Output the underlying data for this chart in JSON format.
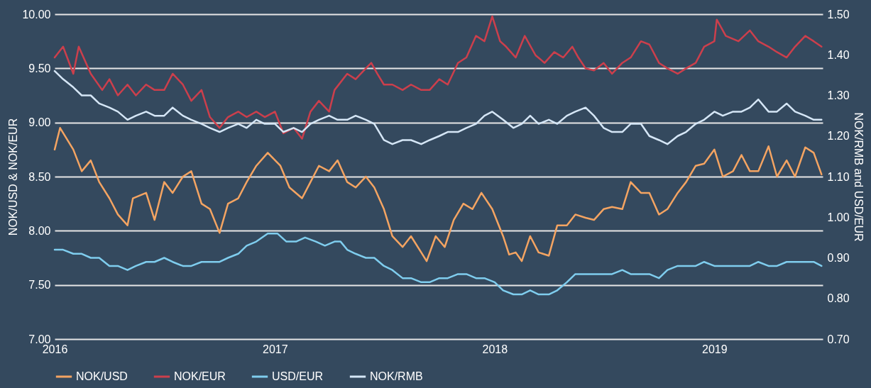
{
  "chart_data": {
    "type": "line",
    "ylabel": "NOK/USD & NOK/EUR",
    "y2label": "NOK/RMB and USD/EUR",
    "xlim": [
      "2016-01-01",
      "2019-06-30"
    ],
    "xticks": [
      "2016",
      "2017",
      "2018",
      "2019"
    ],
    "ylim": [
      7,
      10
    ],
    "yticks": [
      {
        "value": 7,
        "label": "7.00"
      },
      {
        "value": 7.5,
        "label": "7.50"
      },
      {
        "value": 8,
        "label": "8.00"
      },
      {
        "value": 8.5,
        "label": "8.50"
      },
      {
        "value": 9,
        "label": "9.00"
      },
      {
        "value": 9.5,
        "label": "9.50"
      },
      {
        "value": 10,
        "label": "10.00"
      }
    ],
    "y2lim": [
      0.7,
      1.5
    ],
    "y2ticks": [
      {
        "value": 0.7,
        "label": "0.70"
      },
      {
        "value": 0.8,
        "label": "0.80"
      },
      {
        "value": 0.9,
        "label": "0.90"
      },
      {
        "value": 1.0,
        "label": "1.00"
      },
      {
        "value": 1.1,
        "label": "1.10"
      },
      {
        "value": 1.2,
        "label": "1.20"
      },
      {
        "value": 1.3,
        "label": "1.30"
      },
      {
        "value": 1.4,
        "label": "1.40"
      },
      {
        "value": 1.5,
        "label": "1.50"
      }
    ],
    "grid": "y",
    "legend": "bottom",
    "marker": "none",
    "line_style": "solid",
    "series": [
      {
        "name": "NOK/USD",
        "color": "#f4a462",
        "x": [
          "2016-01-01",
          "2016-01-10",
          "2016-02-01",
          "2016-02-15",
          "2016-03-01",
          "2016-03-15",
          "2016-04-01",
          "2016-04-15",
          "2016-05-01",
          "2016-05-10",
          "2016-06-01",
          "2016-06-15",
          "2016-07-01",
          "2016-07-15",
          "2016-08-01",
          "2016-08-15",
          "2016-09-01",
          "2016-09-15",
          "2016-10-01",
          "2016-10-15",
          "2016-11-01",
          "2016-11-15",
          "2016-12-01",
          "2016-12-20",
          "2017-01-10",
          "2017-01-25",
          "2017-02-15",
          "2017-03-01",
          "2017-03-15",
          "2017-04-01",
          "2017-04-15",
          "2017-05-01",
          "2017-05-15",
          "2017-06-01",
          "2017-06-15",
          "2017-07-01",
          "2017-07-15",
          "2017-08-01",
          "2017-08-15",
          "2017-09-01",
          "2017-09-10",
          "2017-09-25",
          "2017-10-10",
          "2017-10-25",
          "2017-11-10",
          "2017-11-25",
          "2017-12-10",
          "2017-12-28",
          "2018-01-15",
          "2018-01-25",
          "2018-02-05",
          "2018-02-15",
          "2018-03-01",
          "2018-03-15",
          "2018-04-01",
          "2018-04-15",
          "2018-05-01",
          "2018-05-15",
          "2018-06-01",
          "2018-06-15",
          "2018-07-01",
          "2018-07-15",
          "2018-08-01",
          "2018-08-15",
          "2018-09-01",
          "2018-09-15",
          "2018-10-01",
          "2018-10-15",
          "2018-11-01",
          "2018-11-15",
          "2018-12-01",
          "2018-12-15",
          "2019-01-01",
          "2019-01-15",
          "2019-02-01",
          "2019-02-15",
          "2019-03-01",
          "2019-03-15",
          "2019-04-01",
          "2019-04-15",
          "2019-05-01",
          "2019-05-15",
          "2019-06-01",
          "2019-06-15",
          "2019-06-28"
        ],
        "values": [
          8.75,
          8.95,
          8.75,
          8.55,
          8.65,
          8.45,
          8.3,
          8.15,
          8.05,
          8.3,
          8.35,
          8.1,
          8.45,
          8.35,
          8.5,
          8.55,
          8.25,
          8.2,
          7.98,
          8.25,
          8.3,
          8.45,
          8.6,
          8.72,
          8.6,
          8.4,
          8.3,
          8.45,
          8.6,
          8.55,
          8.65,
          8.45,
          8.4,
          8.5,
          8.4,
          8.2,
          7.95,
          7.85,
          7.95,
          7.8,
          7.72,
          7.95,
          7.85,
          8.1,
          8.25,
          8.2,
          8.35,
          8.2,
          7.95,
          7.78,
          7.8,
          7.72,
          7.95,
          7.8,
          7.77,
          8.05,
          8.05,
          8.15,
          8.12,
          8.1,
          8.2,
          8.22,
          8.2,
          8.45,
          8.35,
          8.35,
          8.15,
          8.2,
          8.35,
          8.45,
          8.6,
          8.62,
          8.75,
          8.5,
          8.55,
          8.7,
          8.55,
          8.55,
          8.78,
          8.5,
          8.65,
          8.5,
          8.77,
          8.72,
          8.52
        ]
      },
      {
        "name": "NOK/EUR",
        "color": "#cc3f4c",
        "x": [
          "2016-01-01",
          "2016-01-15",
          "2016-02-01",
          "2016-02-10",
          "2016-03-01",
          "2016-03-20",
          "2016-04-01",
          "2016-04-15",
          "2016-05-01",
          "2016-05-15",
          "2016-06-01",
          "2016-06-15",
          "2016-07-01",
          "2016-07-15",
          "2016-08-01",
          "2016-08-15",
          "2016-09-01",
          "2016-09-15",
          "2016-10-01",
          "2016-10-15",
          "2016-11-01",
          "2016-11-15",
          "2016-12-01",
          "2016-12-15",
          "2017-01-01",
          "2017-01-15",
          "2017-02-01",
          "2017-02-15",
          "2017-03-01",
          "2017-03-15",
          "2017-04-01",
          "2017-04-10",
          "2017-05-01",
          "2017-05-15",
          "2017-06-01",
          "2017-06-10",
          "2017-06-20",
          "2017-07-01",
          "2017-07-15",
          "2017-08-01",
          "2017-08-15",
          "2017-09-01",
          "2017-09-15",
          "2017-10-01",
          "2017-10-15",
          "2017-11-01",
          "2017-11-15",
          "2017-12-01",
          "2017-12-15",
          "2017-12-28",
          "2018-01-10",
          "2018-01-20",
          "2018-02-05",
          "2018-02-20",
          "2018-03-10",
          "2018-03-25",
          "2018-04-10",
          "2018-04-25",
          "2018-05-10",
          "2018-05-20",
          "2018-06-01",
          "2018-06-15",
          "2018-07-01",
          "2018-07-15",
          "2018-08-01",
          "2018-08-15",
          "2018-09-01",
          "2018-09-15",
          "2018-10-01",
          "2018-10-15",
          "2018-11-01",
          "2018-11-15",
          "2018-12-01",
          "2018-12-15",
          "2019-01-01",
          "2019-01-05",
          "2019-01-20",
          "2019-02-10",
          "2019-03-01",
          "2019-03-15",
          "2019-04-01",
          "2019-04-15",
          "2019-05-01",
          "2019-05-15",
          "2019-06-01",
          "2019-06-15",
          "2019-06-28"
        ],
        "values": [
          9.6,
          9.7,
          9.45,
          9.7,
          9.45,
          9.3,
          9.4,
          9.25,
          9.35,
          9.25,
          9.35,
          9.3,
          9.3,
          9.45,
          9.35,
          9.2,
          9.3,
          9.05,
          8.95,
          9.05,
          9.1,
          9.05,
          9.1,
          9.05,
          9.1,
          8.9,
          8.95,
          8.85,
          9.1,
          9.2,
          9.1,
          9.3,
          9.45,
          9.4,
          9.5,
          9.55,
          9.45,
          9.35,
          9.35,
          9.3,
          9.35,
          9.3,
          9.3,
          9.4,
          9.35,
          9.55,
          9.6,
          9.8,
          9.75,
          9.98,
          9.75,
          9.7,
          9.6,
          9.8,
          9.62,
          9.55,
          9.65,
          9.6,
          9.7,
          9.6,
          9.5,
          9.48,
          9.55,
          9.45,
          9.55,
          9.6,
          9.75,
          9.72,
          9.55,
          9.5,
          9.45,
          9.5,
          9.55,
          9.7,
          9.75,
          9.95,
          9.8,
          9.75,
          9.85,
          9.75,
          9.7,
          9.65,
          9.6,
          9.7,
          9.8,
          9.75,
          9.7
        ]
      },
      {
        "name": "USD/EUR",
        "color": "#7fcdee",
        "axis": "y2",
        "x": [
          "2016-01-01",
          "2016-01-15",
          "2016-02-01",
          "2016-02-15",
          "2016-03-01",
          "2016-03-15",
          "2016-04-01",
          "2016-04-15",
          "2016-05-01",
          "2016-05-15",
          "2016-06-01",
          "2016-06-15",
          "2016-07-01",
          "2016-07-15",
          "2016-08-01",
          "2016-08-15",
          "2016-09-01",
          "2016-09-15",
          "2016-10-01",
          "2016-10-15",
          "2016-11-01",
          "2016-11-15",
          "2016-12-01",
          "2016-12-20",
          "2017-01-05",
          "2017-01-20",
          "2017-02-05",
          "2017-02-20",
          "2017-03-10",
          "2017-03-25",
          "2017-04-10",
          "2017-04-20",
          "2017-05-01",
          "2017-05-15",
          "2017-06-01",
          "2017-06-15",
          "2017-07-01",
          "2017-07-15",
          "2017-08-01",
          "2017-08-15",
          "2017-09-01",
          "2017-09-15",
          "2017-10-01",
          "2017-10-15",
          "2017-11-01",
          "2017-11-15",
          "2017-12-01",
          "2017-12-15",
          "2018-01-01",
          "2018-01-15",
          "2018-02-01",
          "2018-02-15",
          "2018-03-01",
          "2018-03-15",
          "2018-04-01",
          "2018-04-15",
          "2018-05-01",
          "2018-05-15",
          "2018-06-01",
          "2018-06-15",
          "2018-07-01",
          "2018-07-15",
          "2018-08-01",
          "2018-08-15",
          "2018-09-01",
          "2018-09-15",
          "2018-10-01",
          "2018-10-15",
          "2018-11-01",
          "2018-11-15",
          "2018-12-01",
          "2018-12-15",
          "2019-01-01",
          "2019-01-15",
          "2019-02-01",
          "2019-02-15",
          "2019-03-01",
          "2019-03-15",
          "2019-04-01",
          "2019-04-15",
          "2019-05-01",
          "2019-05-15",
          "2019-06-01",
          "2019-06-15",
          "2019-06-28"
        ],
        "values": [
          0.92,
          0.92,
          0.91,
          0.91,
          0.9,
          0.9,
          0.88,
          0.88,
          0.87,
          0.88,
          0.89,
          0.89,
          0.9,
          0.89,
          0.88,
          0.88,
          0.89,
          0.89,
          0.89,
          0.9,
          0.91,
          0.93,
          0.94,
          0.96,
          0.96,
          0.94,
          0.94,
          0.95,
          0.94,
          0.93,
          0.94,
          0.94,
          0.92,
          0.91,
          0.9,
          0.9,
          0.88,
          0.87,
          0.85,
          0.85,
          0.84,
          0.84,
          0.85,
          0.85,
          0.86,
          0.86,
          0.85,
          0.85,
          0.84,
          0.82,
          0.81,
          0.81,
          0.82,
          0.81,
          0.81,
          0.82,
          0.84,
          0.86,
          0.86,
          0.86,
          0.86,
          0.86,
          0.87,
          0.86,
          0.86,
          0.86,
          0.85,
          0.87,
          0.88,
          0.88,
          0.88,
          0.89,
          0.88,
          0.88,
          0.88,
          0.88,
          0.88,
          0.89,
          0.88,
          0.88,
          0.89,
          0.89,
          0.89,
          0.89,
          0.88
        ]
      },
      {
        "name": "NOK/RMB",
        "color": "#d5e6f6",
        "axis": "y2",
        "x": [
          "2016-01-01",
          "2016-01-15",
          "2016-02-01",
          "2016-02-15",
          "2016-03-01",
          "2016-03-15",
          "2016-04-01",
          "2016-04-15",
          "2016-05-01",
          "2016-05-15",
          "2016-06-01",
          "2016-06-15",
          "2016-07-01",
          "2016-07-15",
          "2016-08-01",
          "2016-08-15",
          "2016-09-01",
          "2016-09-15",
          "2016-10-01",
          "2016-10-15",
          "2016-11-01",
          "2016-11-15",
          "2016-12-01",
          "2016-12-15",
          "2017-01-01",
          "2017-01-15",
          "2017-02-01",
          "2017-02-15",
          "2017-03-01",
          "2017-03-15",
          "2017-04-01",
          "2017-04-15",
          "2017-05-01",
          "2017-05-15",
          "2017-06-01",
          "2017-06-15",
          "2017-07-01",
          "2017-07-15",
          "2017-08-01",
          "2017-08-15",
          "2017-09-01",
          "2017-09-15",
          "2017-10-01",
          "2017-10-15",
          "2017-11-01",
          "2017-11-15",
          "2017-12-01",
          "2017-12-15",
          "2017-12-28",
          "2018-01-15",
          "2018-02-01",
          "2018-02-15",
          "2018-03-01",
          "2018-03-15",
          "2018-04-01",
          "2018-04-15",
          "2018-05-01",
          "2018-05-15",
          "2018-06-01",
          "2018-06-15",
          "2018-07-01",
          "2018-07-15",
          "2018-08-01",
          "2018-08-15",
          "2018-09-01",
          "2018-09-15",
          "2018-10-01",
          "2018-10-15",
          "2018-11-01",
          "2018-11-15",
          "2018-12-01",
          "2018-12-15",
          "2019-01-01",
          "2019-01-15",
          "2019-02-01",
          "2019-02-15",
          "2019-03-01",
          "2019-03-15",
          "2019-04-01",
          "2019-04-15",
          "2019-05-01",
          "2019-05-15",
          "2019-06-01",
          "2019-06-15",
          "2019-06-28"
        ],
        "values": [
          1.36,
          1.34,
          1.32,
          1.3,
          1.3,
          1.28,
          1.27,
          1.26,
          1.24,
          1.25,
          1.26,
          1.25,
          1.25,
          1.27,
          1.25,
          1.24,
          1.23,
          1.22,
          1.21,
          1.22,
          1.23,
          1.22,
          1.24,
          1.23,
          1.23,
          1.21,
          1.22,
          1.21,
          1.23,
          1.24,
          1.25,
          1.24,
          1.24,
          1.25,
          1.24,
          1.23,
          1.19,
          1.18,
          1.19,
          1.19,
          1.18,
          1.19,
          1.2,
          1.21,
          1.21,
          1.22,
          1.23,
          1.25,
          1.26,
          1.24,
          1.22,
          1.23,
          1.25,
          1.23,
          1.24,
          1.23,
          1.25,
          1.26,
          1.27,
          1.25,
          1.22,
          1.21,
          1.21,
          1.23,
          1.23,
          1.2,
          1.19,
          1.18,
          1.2,
          1.21,
          1.23,
          1.24,
          1.26,
          1.25,
          1.26,
          1.26,
          1.27,
          1.29,
          1.26,
          1.26,
          1.28,
          1.26,
          1.25,
          1.24,
          1.24
        ]
      }
    ]
  }
}
